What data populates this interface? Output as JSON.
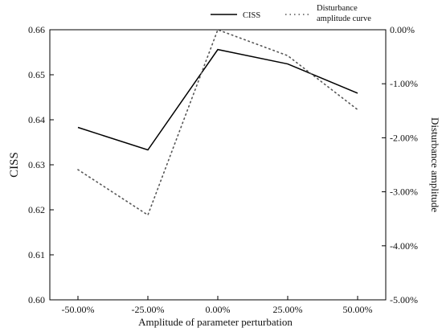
{
  "chart_data": {
    "type": "line",
    "title": "",
    "xlabel": "Amplitude of parameter perturbation",
    "ylabel": "CISS",
    "y2label": "Disturbance amplitude",
    "categories": [
      "-50.00%",
      "-25.00%",
      "0.00%",
      "25.00%",
      "50.00%"
    ],
    "ylim": [
      0.6,
      0.66
    ],
    "y_ticks": [
      "0.60",
      "0.61",
      "0.62",
      "0.63",
      "0.64",
      "0.65",
      "0.66"
    ],
    "y2lim": [
      -5.0,
      0.0
    ],
    "y2_ticks": [
      "0.00%",
      "-1.00%",
      "-2.00%",
      "-3.00%",
      "-4.00%",
      "-5.00%"
    ],
    "grid": false,
    "legend_position": "top-right",
    "series": [
      {
        "name": "CISS",
        "axis": "left",
        "style": "solid",
        "color": "#000000",
        "values": [
          0.6383,
          0.6333,
          0.6556,
          0.6524,
          0.6459
        ]
      },
      {
        "name": "Disturbance amplitude curve",
        "legend_lines": [
          "Disturbance",
          "amplitude curve"
        ],
        "axis": "right",
        "style": "dotted",
        "color": "#555555",
        "values": [
          -2.59,
          -3.43,
          0.0,
          -0.48,
          -1.48
        ]
      }
    ]
  }
}
